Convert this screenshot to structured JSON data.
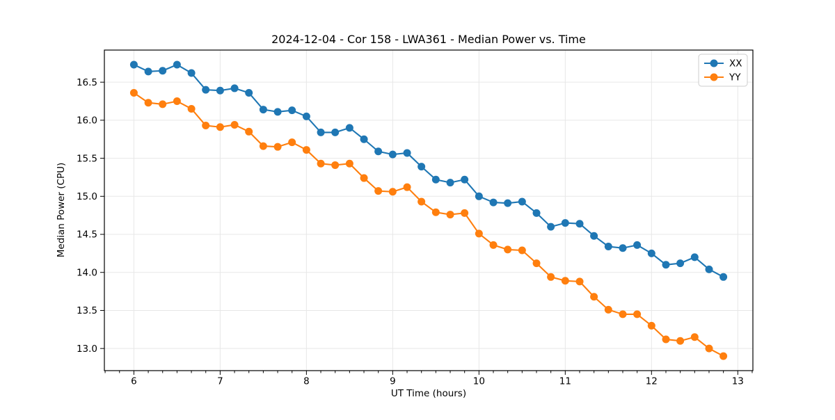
{
  "chart_data": {
    "type": "line",
    "title": "2024-12-04 - Cor 158 - LWA361 - Median Power vs. Time",
    "xlabel": "UT Time (hours)",
    "ylabel": "Median Power (CPU)",
    "x": [
      6.0,
      6.167,
      6.333,
      6.5,
      6.667,
      6.833,
      7.0,
      7.167,
      7.333,
      7.5,
      7.667,
      7.833,
      8.0,
      8.167,
      8.333,
      8.5,
      8.667,
      8.833,
      9.0,
      9.167,
      9.333,
      9.5,
      9.667,
      9.833,
      10.0,
      10.167,
      10.333,
      10.5,
      10.667,
      10.833,
      11.0,
      11.167,
      11.333,
      11.5,
      11.667,
      11.833,
      12.0,
      12.167,
      12.333,
      12.5,
      12.667,
      12.833
    ],
    "series": [
      {
        "name": "XX",
        "color": "#1f77b4",
        "values": [
          16.73,
          16.64,
          16.65,
          16.73,
          16.62,
          16.4,
          16.39,
          16.42,
          16.36,
          16.14,
          16.11,
          16.13,
          16.05,
          15.84,
          15.84,
          15.9,
          15.75,
          15.59,
          15.55,
          15.57,
          15.39,
          15.22,
          15.18,
          15.22,
          15.0,
          14.92,
          14.91,
          14.93,
          14.78,
          14.6,
          14.65,
          14.64,
          14.48,
          14.34,
          14.32,
          14.36,
          14.25,
          14.1,
          14.12,
          14.2,
          14.04,
          13.94
        ]
      },
      {
        "name": "YY",
        "color": "#ff7f0e",
        "values": [
          16.36,
          16.23,
          16.21,
          16.25,
          16.15,
          15.93,
          15.91,
          15.94,
          15.85,
          15.66,
          15.65,
          15.71,
          15.61,
          15.43,
          15.41,
          15.43,
          15.24,
          15.07,
          15.06,
          15.12,
          14.93,
          14.79,
          14.76,
          14.78,
          14.51,
          14.36,
          14.3,
          14.29,
          14.12,
          13.94,
          13.89,
          13.88,
          13.68,
          13.51,
          13.45,
          13.45,
          13.3,
          13.12,
          13.1,
          13.15,
          13.0,
          12.9
        ]
      }
    ],
    "xlim": [
      5.658,
      13.175
    ],
    "ylim": [
      12.709,
      16.922
    ],
    "xticks": {
      "values": [
        6,
        7,
        8,
        9,
        10,
        11,
        12,
        13
      ],
      "labels": [
        "6",
        "7",
        "8",
        "9",
        "10",
        "11",
        "12",
        "13"
      ]
    },
    "yticks": {
      "values": [
        13.0,
        13.5,
        14.0,
        14.5,
        15.0,
        15.5,
        16.0,
        16.5
      ],
      "labels": [
        "13.0",
        "13.5",
        "14.0",
        "14.5",
        "15.0",
        "15.5",
        "16.0",
        "16.5"
      ]
    },
    "x_minor_step": 0.166667,
    "grid": true,
    "legend": {
      "position": "upper right",
      "entries": [
        "XX",
        "YY"
      ]
    }
  },
  "style": {
    "grid_color": "#e7e7e7",
    "spine_color": "#000000",
    "tick_color": "#000000",
    "legend_border_color": "#cccccc",
    "background": "#ffffff"
  }
}
